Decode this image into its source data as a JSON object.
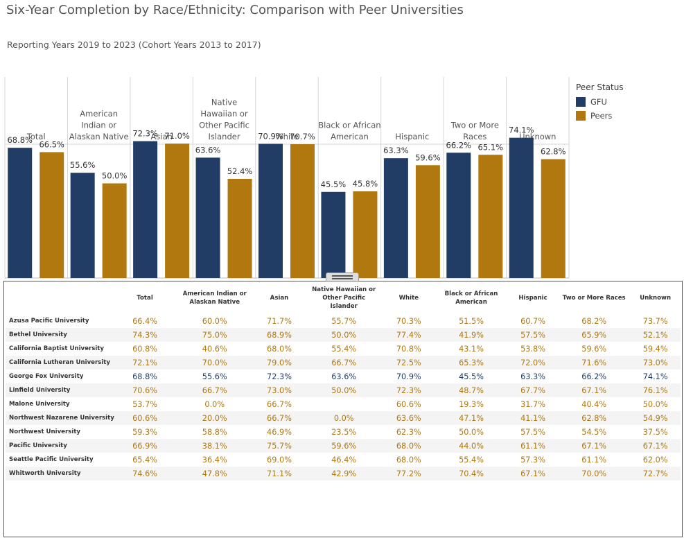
{
  "title": "Six-Year Completion by Race/Ethnicity: Comparison with Peer Universities",
  "subtitle": "Reporting Years 2019 to 2023  (Cohort Years 2013 to 2017)",
  "legend": {
    "title": "Peer Status",
    "items": [
      {
        "label": "GFU",
        "color": "#213d66"
      },
      {
        "label": "Peers",
        "color": "#b0780e"
      }
    ]
  },
  "chart_data": {
    "type": "bar",
    "title": "Six-Year Completion by Race/Ethnicity: Comparison with Peer Universities",
    "categories": [
      [
        "Total"
      ],
      [
        "American",
        "Indian or",
        "Alaskan Native"
      ],
      [
        "Asian"
      ],
      [
        "Native",
        "Hawaiian or",
        "Other Pacific",
        "Islander"
      ],
      [
        "White"
      ],
      [
        "Black or African",
        "American"
      ],
      [
        "Hispanic"
      ],
      [
        "Two or More",
        "Races"
      ],
      [
        "Unknown"
      ]
    ],
    "series": [
      {
        "name": "GFU",
        "color": "#213d66",
        "values": [
          68.8,
          55.6,
          72.3,
          63.6,
          70.9,
          45.5,
          63.3,
          66.2,
          74.1
        ]
      },
      {
        "name": "Peers",
        "color": "#b0780e",
        "values": [
          66.5,
          50.0,
          71.0,
          52.4,
          70.7,
          45.8,
          59.6,
          65.1,
          62.8
        ]
      }
    ],
    "labels_gfu": [
      "68.8%",
      "55.6%",
      "72.3%",
      "63.6%",
      "70.9%",
      "45.5%",
      "63.3%",
      "66.2%",
      "74.1%"
    ],
    "labels_peers": [
      "66.5%",
      "50.0%",
      "71.0%",
      "52.4%",
      "70.7%",
      "45.8%",
      "59.6%",
      "65.1%",
      "62.8%"
    ],
    "ylim": [
      0,
      100
    ],
    "legend_position": "right"
  },
  "table": {
    "headers": [
      "",
      "Total",
      "American Indian or\nAlaskan Native",
      "Asian",
      "Native Hawaiian or\nOther Pacific\nIslander",
      "White",
      "Black or African\nAmerican",
      "Hispanic",
      "Two or More Races",
      "Unknown"
    ],
    "highlight_color": "#213d66",
    "peer_color": "#b0780e",
    "rows": [
      {
        "name": "Azusa Pacific University",
        "gfu": false,
        "values": [
          "66.4%",
          "60.0%",
          "71.7%",
          "55.7%",
          "70.3%",
          "51.5%",
          "60.7%",
          "68.2%",
          "73.7%"
        ]
      },
      {
        "name": "Bethel University",
        "gfu": false,
        "values": [
          "74.3%",
          "75.0%",
          "68.9%",
          "50.0%",
          "77.4%",
          "41.9%",
          "57.5%",
          "65.9%",
          "52.1%"
        ]
      },
      {
        "name": "California Baptist University",
        "gfu": false,
        "values": [
          "60.8%",
          "40.6%",
          "68.0%",
          "55.4%",
          "70.8%",
          "43.1%",
          "53.8%",
          "59.6%",
          "59.4%"
        ]
      },
      {
        "name": "California Lutheran University",
        "gfu": false,
        "values": [
          "72.1%",
          "70.0%",
          "79.0%",
          "66.7%",
          "72.5%",
          "65.3%",
          "72.0%",
          "71.6%",
          "73.0%"
        ]
      },
      {
        "name": "George Fox University",
        "gfu": true,
        "values": [
          "68.8%",
          "55.6%",
          "72.3%",
          "63.6%",
          "70.9%",
          "45.5%",
          "63.3%",
          "66.2%",
          "74.1%"
        ]
      },
      {
        "name": "Linfield University",
        "gfu": false,
        "values": [
          "70.6%",
          "66.7%",
          "73.0%",
          "50.0%",
          "72.3%",
          "48.7%",
          "67.7%",
          "67.1%",
          "76.1%"
        ]
      },
      {
        "name": "Malone University",
        "gfu": false,
        "values": [
          "53.7%",
          "0.0%",
          "66.7%",
          "",
          "60.6%",
          "19.3%",
          "31.7%",
          "40.4%",
          "50.0%"
        ]
      },
      {
        "name": "Northwest Nazarene University",
        "gfu": false,
        "values": [
          "60.6%",
          "20.0%",
          "66.7%",
          "0.0%",
          "63.6%",
          "47.1%",
          "41.1%",
          "62.8%",
          "54.9%"
        ]
      },
      {
        "name": "Northwest University",
        "gfu": false,
        "values": [
          "59.3%",
          "58.8%",
          "46.9%",
          "23.5%",
          "62.3%",
          "50.0%",
          "57.5%",
          "54.5%",
          "37.5%"
        ]
      },
      {
        "name": "Pacific University",
        "gfu": false,
        "values": [
          "66.9%",
          "38.1%",
          "75.7%",
          "59.6%",
          "68.0%",
          "44.0%",
          "61.1%",
          "67.1%",
          "67.1%"
        ]
      },
      {
        "name": "Seattle Pacific University",
        "gfu": false,
        "values": [
          "65.4%",
          "36.4%",
          "69.0%",
          "46.4%",
          "68.0%",
          "55.4%",
          "57.3%",
          "61.1%",
          "62.0%"
        ]
      },
      {
        "name": "Whitworth University",
        "gfu": false,
        "values": [
          "74.6%",
          "47.8%",
          "71.1%",
          "42.9%",
          "77.2%",
          "70.4%",
          "67.1%",
          "70.0%",
          "72.7%"
        ]
      }
    ]
  }
}
